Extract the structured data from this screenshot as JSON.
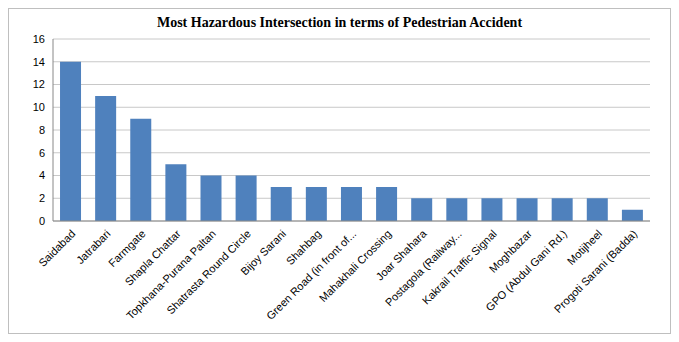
{
  "chart_data": {
    "type": "bar",
    "title": "Most Hazardous Intersection in terms of Pedestrian Accident",
    "categories": [
      "Saidabad",
      "Jatrabari",
      "Farmgate",
      "Shapla Chattar",
      "Topkhana-Purana Paltan",
      "Shatrasta Round Circle",
      "Bijoy Sarani",
      "Shahbag",
      "Green Road (in front of...",
      "Mahakhali Crossing",
      "Joar Shahara",
      "Postagola (Railway...",
      "Kakrail Traffic Signal",
      "Moghbazar",
      "GPO (Abdul Gani Rd.)",
      "Motijheel",
      "Progoti Sarani (Badda)"
    ],
    "values": [
      14,
      11,
      9,
      5,
      4,
      4,
      3,
      3,
      3,
      3,
      2,
      2,
      2,
      2,
      2,
      2,
      1
    ],
    "color": "#4f81bd",
    "ylim": [
      0,
      16
    ],
    "yticks": [
      0,
      2,
      4,
      6,
      8,
      10,
      12,
      14,
      16
    ],
    "grid": true
  }
}
